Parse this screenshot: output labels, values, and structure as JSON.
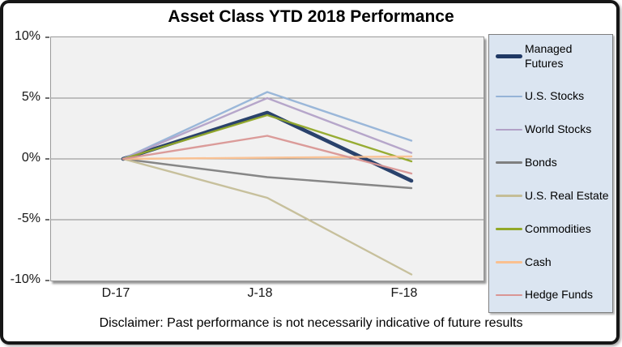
{
  "chart_data": {
    "type": "line",
    "title": "Asset Class YTD 2018 Performance",
    "disclaimer": "Disclaimer: Past performance is not necessarily indicative of future results",
    "x_categories": [
      "D-17",
      "J-18",
      "F-18"
    ],
    "y_tick_labels": [
      "10%",
      "5%",
      "0%",
      "-5%",
      "-10%"
    ],
    "y_tick_values": [
      10,
      5,
      0,
      -5,
      -10
    ],
    "ylim": [
      -10,
      10
    ],
    "unit": "percent",
    "grid": true,
    "legend_position": "right",
    "plot_bg_color": "#F1F1F1",
    "legend_bg_color": "#DBE5F1",
    "gridline_color": "#8A8A8A",
    "series": [
      {
        "name": "Managed Futures",
        "color": "#1F3864",
        "thickness": "thick",
        "values": [
          0,
          3.8,
          -1.8
        ]
      },
      {
        "name": "U.S. Stocks",
        "color": "#95B3D7",
        "thickness": "normal",
        "values": [
          0,
          5.5,
          1.5
        ]
      },
      {
        "name": "World Stocks",
        "color": "#B2A1C7",
        "thickness": "normal",
        "values": [
          0,
          5.0,
          0.5
        ]
      },
      {
        "name": "Bonds",
        "color": "#7F7F7F",
        "thickness": "normal",
        "values": [
          0,
          -1.5,
          -2.4
        ]
      },
      {
        "name": "U.S. Real Estate",
        "color": "#C4BD97",
        "thickness": "normal",
        "values": [
          0,
          -3.2,
          -9.5
        ]
      },
      {
        "name": "Commodities",
        "color": "#91A828",
        "thickness": "normal",
        "values": [
          0,
          3.6,
          -0.2
        ]
      },
      {
        "name": "Cash",
        "color": "#FAC090",
        "thickness": "normal",
        "values": [
          0,
          0.1,
          0.2
        ]
      },
      {
        "name": "Hedge Funds",
        "color": "#D99694",
        "thickness": "normal",
        "values": [
          0,
          1.9,
          -1.2
        ]
      }
    ]
  }
}
